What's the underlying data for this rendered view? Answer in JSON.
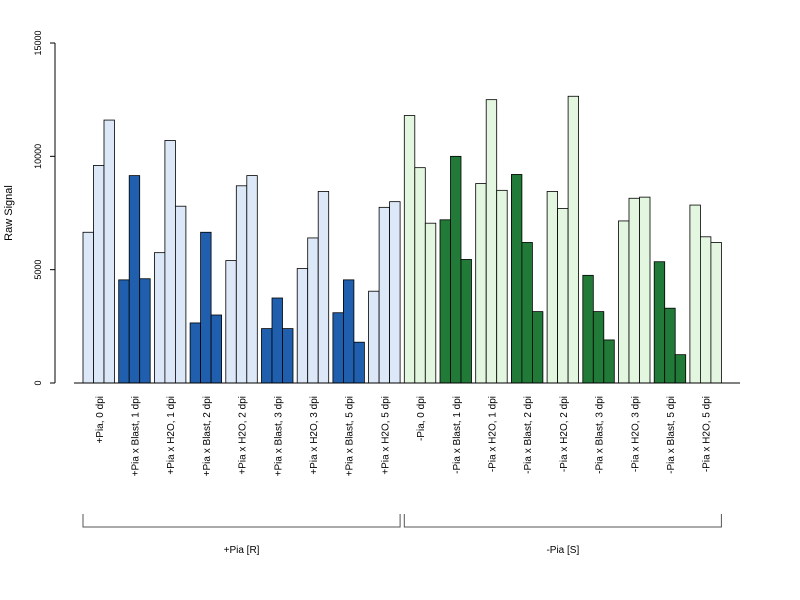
{
  "chart_data": {
    "type": "bar",
    "title": "",
    "xlabel": "",
    "ylabel": "Raw Signal",
    "ylim": [
      0,
      15000
    ],
    "yticks": [
      0,
      5000,
      10000,
      15000
    ],
    "grid": false,
    "legend": "none",
    "colors": {
      "pia_r_light": "#dce8f7",
      "pia_r_dark": "#1f5fad",
      "pia_s_light": "#e3f6df",
      "pia_s_dark": "#217a37",
      "stroke": "#000000"
    },
    "categories": [
      {
        "label": "+Pia, 0 dpi",
        "values": [
          6650,
          9600,
          11600
        ],
        "shade": "pia_r_light"
      },
      {
        "label": "+Pia x Blast, 1 dpi",
        "values": [
          4550,
          9150,
          4600
        ],
        "shade": "pia_r_dark"
      },
      {
        "label": "+Pia x H2O, 1 dpi",
        "values": [
          5750,
          10700,
          7800
        ],
        "shade": "pia_r_light"
      },
      {
        "label": "+Pia x Blast, 2 dpi",
        "values": [
          2650,
          6650,
          3000
        ],
        "shade": "pia_r_dark"
      },
      {
        "label": "+Pia x H2O, 2 dpi",
        "values": [
          5400,
          8700,
          9150
        ],
        "shade": "pia_r_light"
      },
      {
        "label": "+Pia x Blast, 3 dpi",
        "values": [
          2400,
          3750,
          2400
        ],
        "shade": "pia_r_dark"
      },
      {
        "label": "+Pia x H2O, 3 dpi",
        "values": [
          5050,
          6400,
          8450
        ],
        "shade": "pia_r_light"
      },
      {
        "label": "+Pia x Blast, 5 dpi",
        "values": [
          3100,
          4550,
          1800
        ],
        "shade": "pia_r_dark"
      },
      {
        "label": "+Pia x H2O, 5 dpi",
        "values": [
          4050,
          7750,
          8000
        ],
        "shade": "pia_r_light"
      },
      {
        "label": "-Pia, 0 dpi",
        "values": [
          11800,
          9500,
          7050
        ],
        "shade": "pia_s_light"
      },
      {
        "label": "-Pia x Blast, 1 dpi",
        "values": [
          7200,
          10000,
          5450
        ],
        "shade": "pia_s_dark"
      },
      {
        "label": "-Pia x H2O, 1 dpi",
        "values": [
          8800,
          12500,
          8500
        ],
        "shade": "pia_s_light"
      },
      {
        "label": "-Pia x Blast, 2 dpi",
        "values": [
          9200,
          6200,
          3150
        ],
        "shade": "pia_s_dark"
      },
      {
        "label": "-Pia x H2O, 2 dpi",
        "values": [
          8450,
          7700,
          12650
        ],
        "shade": "pia_s_light"
      },
      {
        "label": "-Pia x Blast, 3 dpi",
        "values": [
          4750,
          3150,
          1900
        ],
        "shade": "pia_s_dark"
      },
      {
        "label": "-Pia x H2O, 3 dpi",
        "values": [
          7150,
          8150,
          8200
        ],
        "shade": "pia_s_light"
      },
      {
        "label": "-Pia x Blast, 5 dpi",
        "values": [
          5350,
          3300,
          1250
        ],
        "shade": "pia_s_dark"
      },
      {
        "label": "-Pia x H2O, 5 dpi",
        "values": [
          7850,
          6450,
          6200
        ],
        "shade": "pia_s_light"
      }
    ],
    "groups": [
      {
        "label": "+Pia [R]",
        "first": 0,
        "last": 8
      },
      {
        "label": "-Pia [S]",
        "first": 9,
        "last": 17
      }
    ]
  }
}
